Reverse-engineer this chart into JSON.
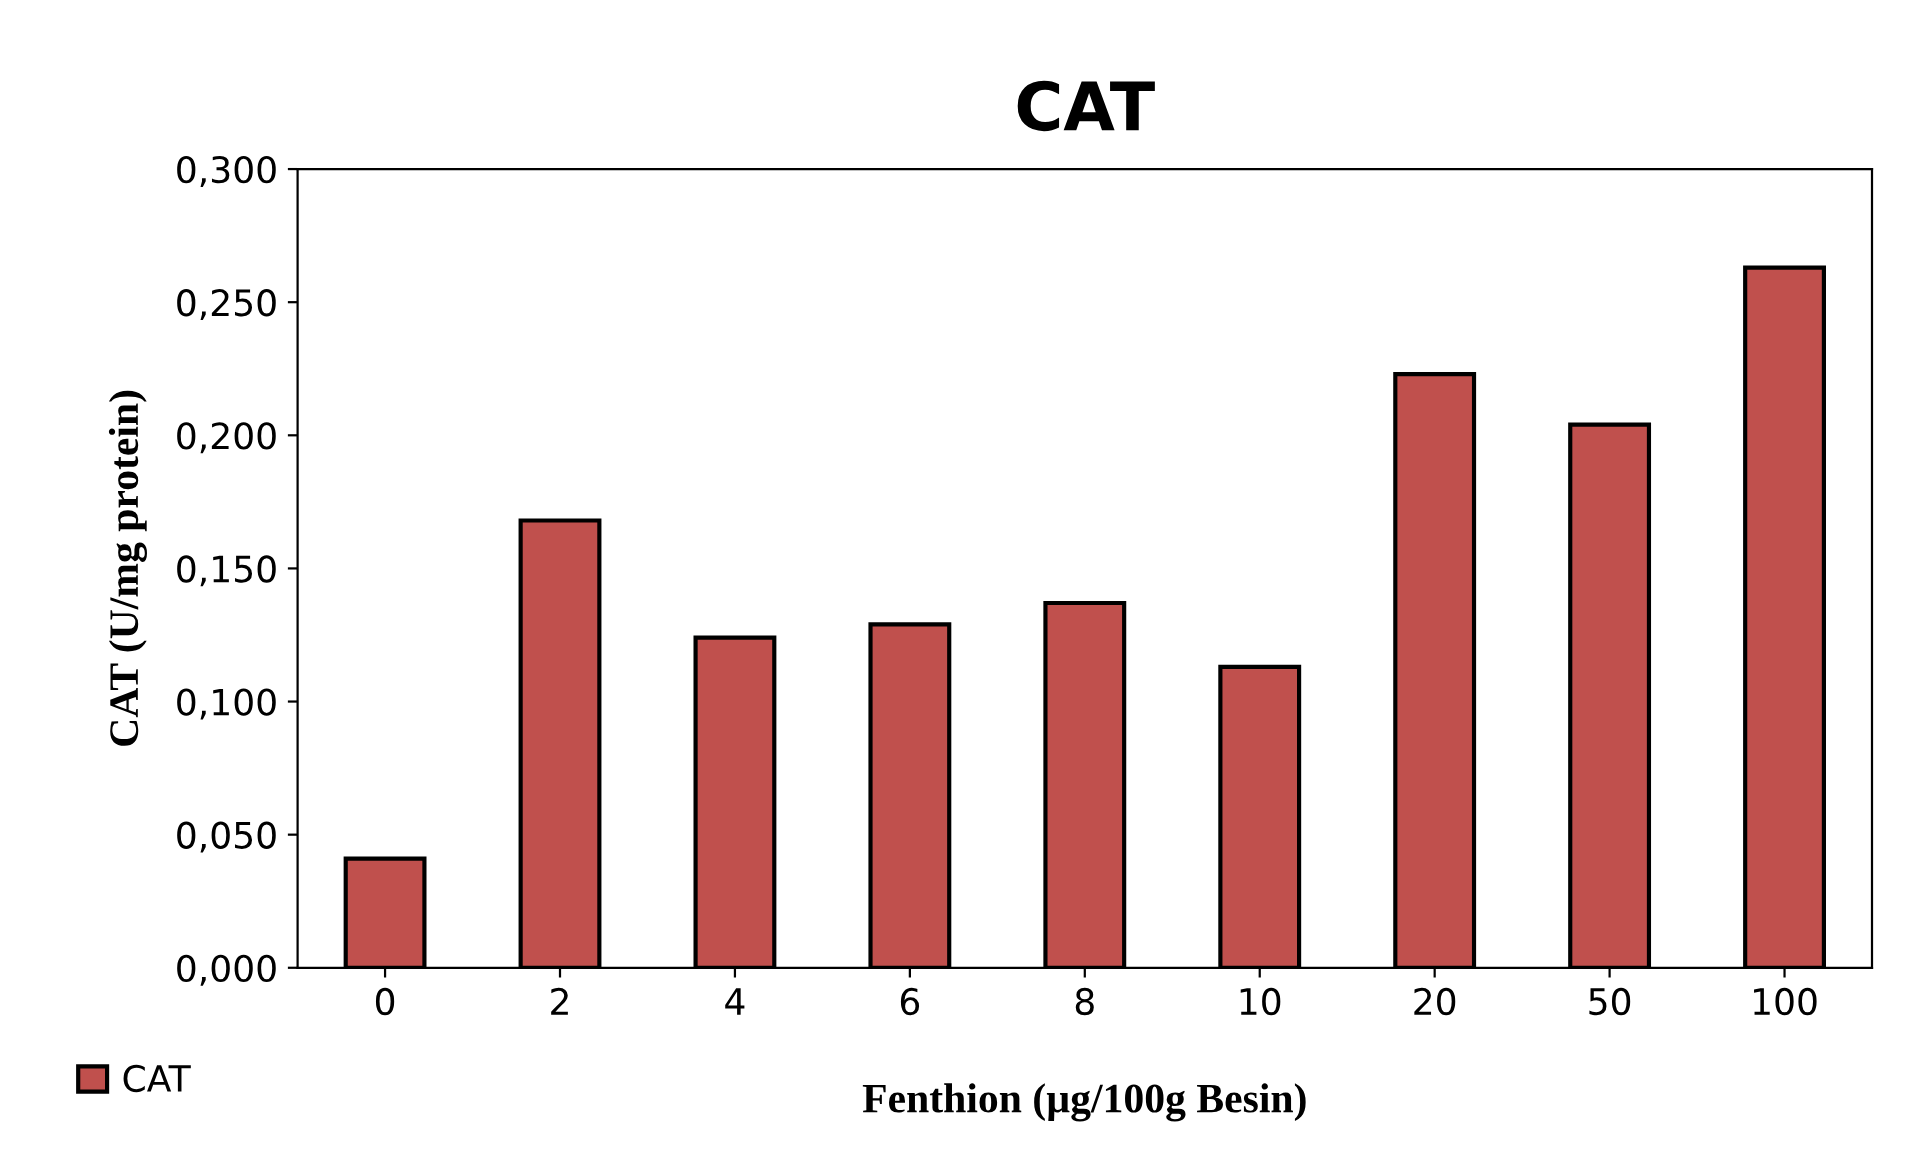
{
  "chart_data": {
    "type": "bar",
    "title": "CAT",
    "xlabel": "Fenthion (µg/100g Besin)",
    "ylabel": "CAT (U/mg protein)",
    "categories": [
      "0",
      "2",
      "4",
      "6",
      "8",
      "10",
      "20",
      "50",
      "100"
    ],
    "series": [
      {
        "name": "CAT",
        "color": "#c0504d",
        "values": [
          0.041,
          0.168,
          0.124,
          0.129,
          0.137,
          0.113,
          0.223,
          0.204,
          0.263
        ]
      }
    ],
    "ylim": [
      0,
      0.3
    ],
    "yticks": [
      {
        "value": 0,
        "label": "0,000"
      },
      {
        "value": 0.05,
        "label": "0,050"
      },
      {
        "value": 0.1,
        "label": "0,100"
      },
      {
        "value": 0.15,
        "label": "0,150"
      },
      {
        "value": 0.2,
        "label": "0,200"
      },
      {
        "value": 0.25,
        "label": "0,250"
      },
      {
        "value": 0.3,
        "label": "0,300"
      }
    ],
    "grid": false,
    "legend": "bottom left"
  }
}
